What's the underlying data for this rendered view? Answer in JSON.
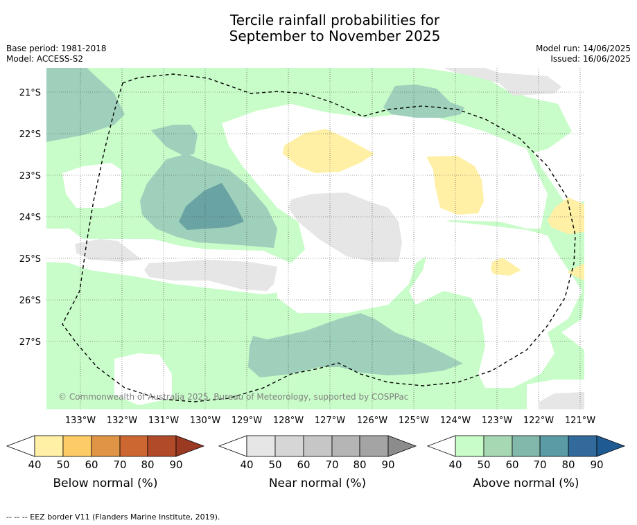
{
  "title_line1": "Tercile rainfall probabilities for",
  "title_line2": "September to November 2025",
  "base_period": "Base period: 1981-2018",
  "model": "Model: ACCESS-S2",
  "model_run": "Model run: 14/06/2025",
  "issued": "Issued: 16/06/2025",
  "copyright": "© Commonwealth of Australia 2025, Bureau of Meteorology, supported by COSPPac",
  "footer": "--  --  -- EEZ border V11 (Flanders Marine Institute, 2019).",
  "lat_labels": [
    "21°S",
    "22°S",
    "23°S",
    "24°S",
    "25°S",
    "26°S",
    "27°S"
  ],
  "lon_labels": [
    "133°W",
    "132°W",
    "131°W",
    "130°W",
    "129°W",
    "128°W",
    "127°W",
    "126°W",
    "125°W",
    "124°W",
    "123°W",
    "122°W",
    "121°W"
  ],
  "colorbars": [
    {
      "label": "Below normal (%)",
      "ticks": [
        "40",
        "50",
        "60",
        "70",
        "80",
        "90"
      ],
      "colors": [
        "#fff0a6",
        "#fdcc66",
        "#e09546",
        "#cd6732",
        "#b04a28",
        "#9a3a22"
      ]
    },
    {
      "label": "Near normal (%)",
      "ticks": [
        "40",
        "50",
        "60",
        "70",
        "80",
        "90"
      ],
      "colors": [
        "#e6e6e6",
        "#d6d6d6",
        "#c6c6c6",
        "#b5b5b5",
        "#a4a4a4",
        "#8c8c8c"
      ]
    },
    {
      "label": "Above normal (%)",
      "ticks": [
        "40",
        "50",
        "60",
        "70",
        "80",
        "90"
      ],
      "colors": [
        "#c8fcc8",
        "#a6d8b3",
        "#82b8ac",
        "#5a9ba5",
        "#326a9c",
        "#1f5a92"
      ]
    }
  ],
  "map_colors": {
    "above_40": "#c8fcc8",
    "above_50": "#9fd0bb",
    "above_60": "#6aa3a3",
    "below_40": "#fff0a6",
    "near_40": "#e6e6e6"
  }
}
